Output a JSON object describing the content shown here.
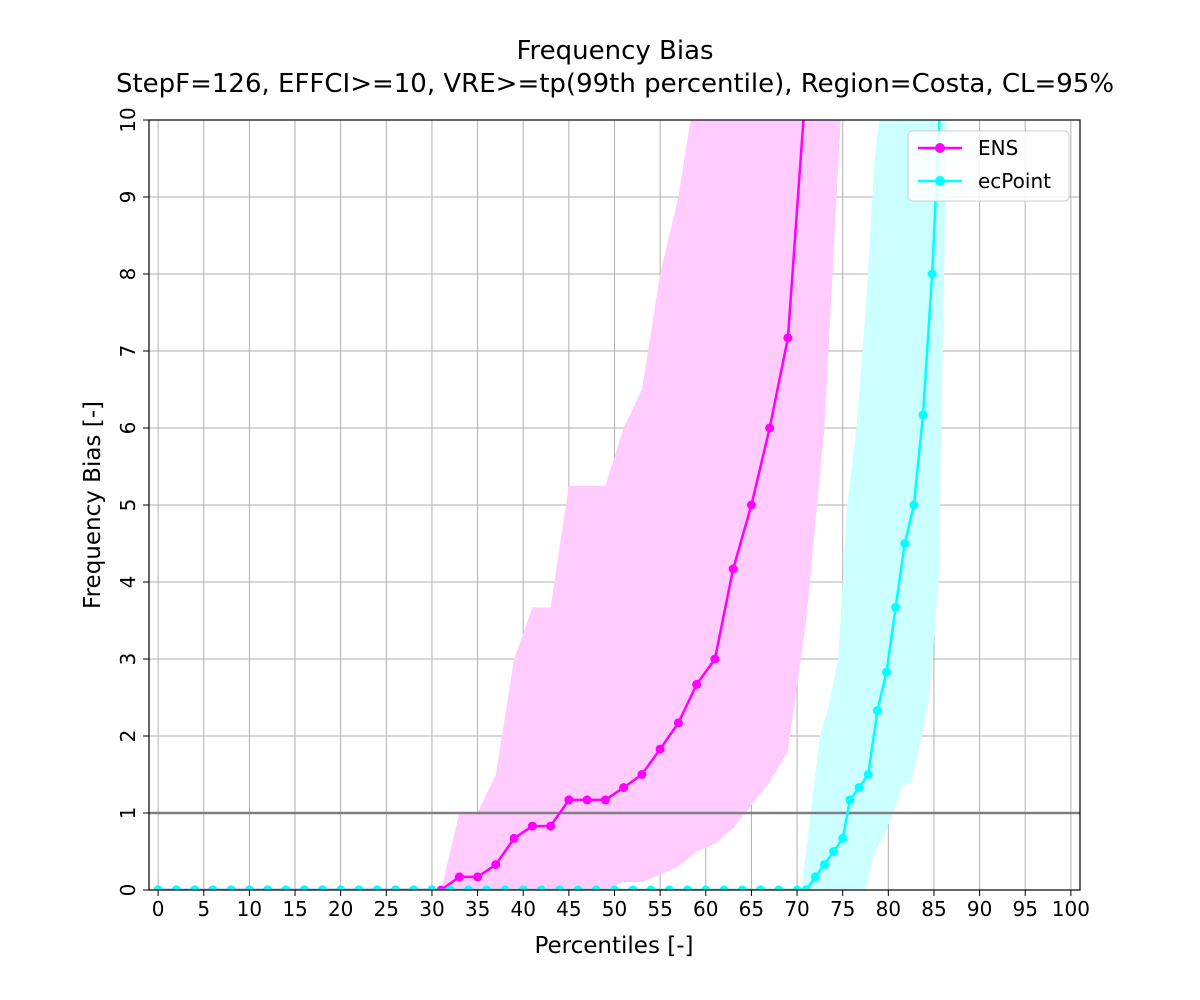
{
  "chart_data": {
    "type": "line",
    "title": "Frequency Bias",
    "subtitle": "StepF=126, EFFCI>=10, VRE>=tp(99th percentile), Region=Costa, CL=95%",
    "xlabel": "Percentiles [-]",
    "ylabel": "Frequency Bias [-]",
    "xlim": [
      -1,
      101
    ],
    "ylim": [
      0,
      10
    ],
    "xticks": [
      0,
      5,
      10,
      15,
      20,
      25,
      30,
      35,
      40,
      45,
      50,
      55,
      60,
      65,
      70,
      75,
      80,
      85,
      90,
      95,
      100
    ],
    "yticks": [
      0,
      1,
      2,
      3,
      4,
      5,
      6,
      7,
      8,
      9,
      10
    ],
    "grid": true,
    "legend": "top-right",
    "reference_line": {
      "y": 1,
      "color": "#808080"
    },
    "series": [
      {
        "name": "ENS",
        "color": "#ff00ff",
        "band_color": "#ffccfd",
        "x": [
          0,
          2,
          4,
          6,
          8,
          10,
          12,
          14,
          16,
          18,
          20,
          22,
          24,
          26,
          28,
          30,
          31,
          33,
          35,
          37,
          39,
          41,
          43,
          45,
          47,
          49,
          51,
          53,
          55,
          57,
          59,
          61,
          63,
          65,
          67,
          69,
          71
        ],
        "y": [
          0,
          0,
          0,
          0,
          0,
          0,
          0,
          0,
          0,
          0,
          0,
          0,
          0,
          0,
          0,
          0,
          0,
          0.17,
          0.17,
          0.33,
          0.67,
          0.83,
          0.83,
          1.17,
          1.17,
          1.17,
          1.33,
          1.5,
          1.83,
          2.17,
          2.67,
          3.0,
          4.17,
          5.0,
          6.0,
          7.17,
          10.5
        ],
        "ci_x": [
          31,
          33,
          35,
          37,
          39,
          41,
          43,
          45,
          47,
          49,
          51,
          53,
          55,
          57,
          59,
          61,
          63,
          65,
          67,
          69,
          71,
          73,
          75
        ],
        "ci_lower": [
          0,
          0,
          0,
          0,
          0,
          0,
          0,
          0,
          0,
          0,
          0.1,
          0.1,
          0.2,
          0.3,
          0.5,
          0.6,
          0.8,
          1.1,
          1.4,
          1.8,
          3.5,
          6.0,
          10.5
        ],
        "ci_upper": [
          0,
          1.0,
          1.0,
          1.5,
          3.0,
          3.67,
          3.67,
          5.25,
          5.25,
          5.25,
          6.0,
          6.5,
          8.0,
          9.0,
          10.5,
          10.5,
          10.5,
          10.5,
          10.5,
          10.5,
          10.5,
          10.5,
          10.5
        ]
      },
      {
        "name": "ecPoint",
        "color": "#00ffff",
        "band_color": "#ccffff",
        "x": [
          0,
          2,
          4,
          6,
          8,
          10,
          12,
          14,
          16,
          18,
          20,
          22,
          24,
          26,
          28,
          30,
          32,
          34,
          36,
          38,
          40,
          42,
          44,
          46,
          48,
          50,
          52,
          54,
          56,
          58,
          60,
          62,
          64,
          66,
          68,
          70,
          71,
          72,
          73,
          74,
          75,
          75.8,
          76.8,
          77.8,
          78.8,
          79.8,
          80.8,
          81.8,
          82.8,
          83.8,
          84.8,
          85.8
        ],
        "y": [
          0,
          0,
          0,
          0,
          0,
          0,
          0,
          0,
          0,
          0,
          0,
          0,
          0,
          0,
          0,
          0,
          0,
          0,
          0,
          0,
          0,
          0,
          0,
          0,
          0,
          0,
          0,
          0,
          0,
          0,
          0,
          0,
          0,
          0,
          0,
          0,
          0,
          0.17,
          0.33,
          0.5,
          0.67,
          1.17,
          1.33,
          1.5,
          2.33,
          2.83,
          3.67,
          4.5,
          5.0,
          6.17,
          8.0,
          10.5
        ],
        "ci_x": [
          70.5,
          71.5,
          72.5,
          73.5,
          74.5,
          75.5,
          76.5,
          77.5,
          78.5,
          79.5,
          80.5,
          81.5,
          82.5,
          83.5,
          84.5,
          85.5,
          86.5,
          87.5
        ],
        "ci_lower": [
          0,
          0,
          0,
          0,
          0,
          0,
          0,
          0,
          0.5,
          0.7,
          1.0,
          1.35,
          1.4,
          1.9,
          2.5,
          4.0,
          10.5,
          10.5
        ],
        "ci_upper": [
          0,
          1.0,
          2.0,
          2.4,
          3.0,
          5.0,
          6.0,
          7.5,
          9.5,
          10.5,
          10.5,
          10.5,
          10.5,
          10.5,
          10.5,
          10.5,
          10.5,
          10.5
        ]
      }
    ]
  }
}
